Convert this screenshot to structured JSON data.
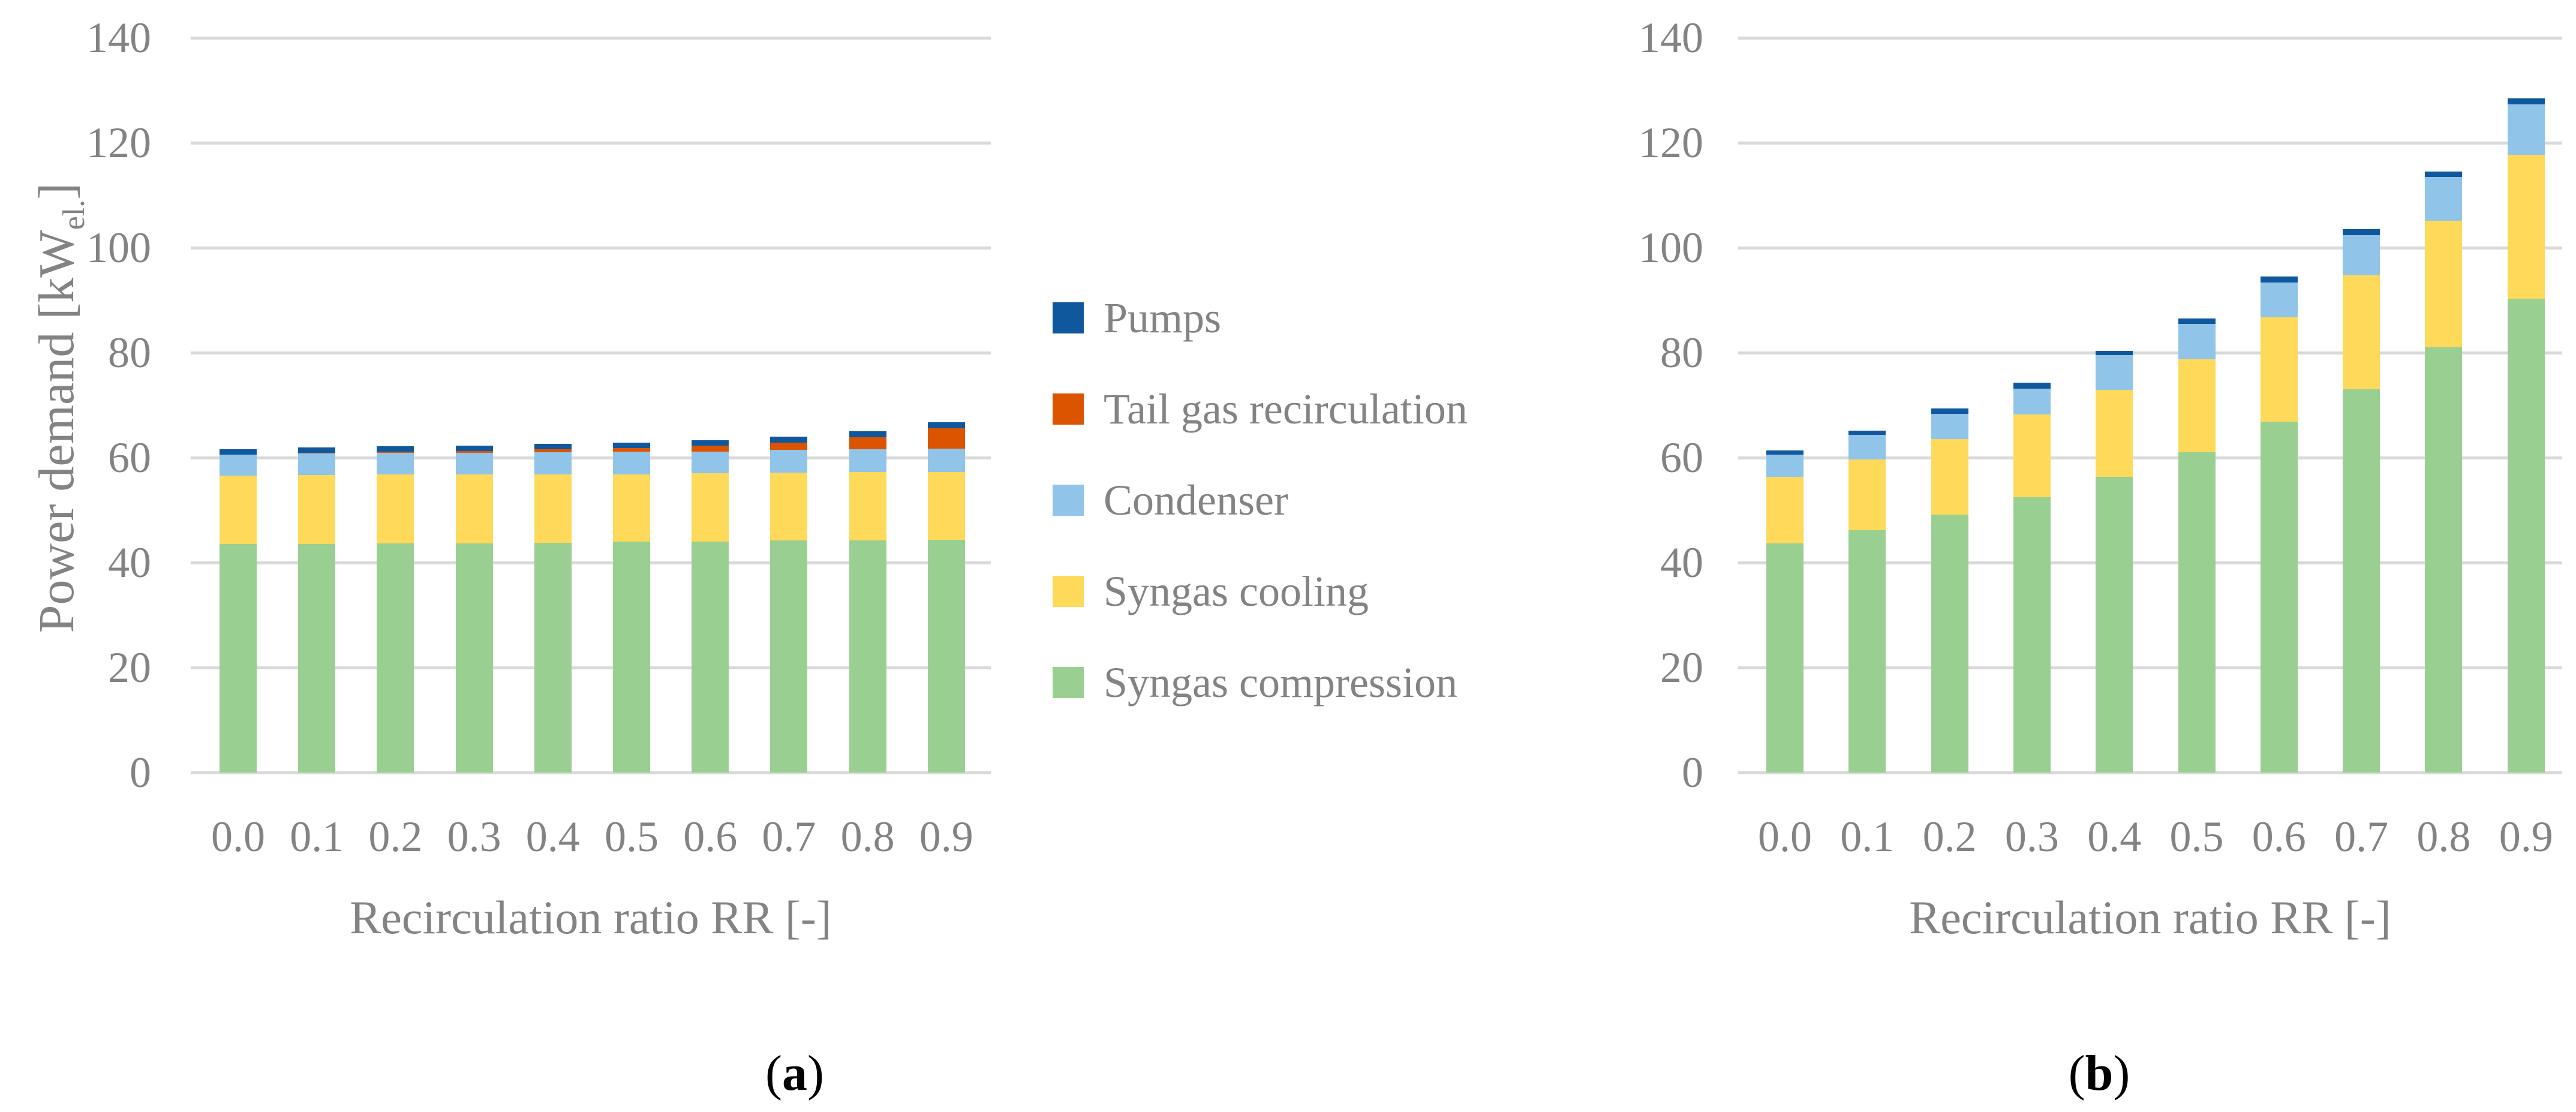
{
  "figure": {
    "caption_open": "(",
    "caption_close": ")",
    "panel_a_caption_letter": "a",
    "panel_b_caption_letter": "b"
  },
  "axes": {
    "ylabel_main": "Power demand [kW",
    "ylabel_sub": "el.",
    "ylabel_close": "]",
    "xlabel": "Recirculation ratio RR [-]",
    "ylim": [
      0,
      140
    ],
    "ytick_step": 20,
    "yticks": [
      "0",
      "20",
      "40",
      "60",
      "80",
      "100",
      "120",
      "140"
    ],
    "categories": [
      "0.0",
      "0.1",
      "0.2",
      "0.3",
      "0.4",
      "0.5",
      "0.6",
      "0.7",
      "0.8",
      "0.9"
    ],
    "grid": true
  },
  "legend": {
    "position": "center-between-panels",
    "items": [
      {
        "label": "Pumps",
        "color": "#10589E"
      },
      {
        "label": "Tail gas recirculation",
        "color": "#DC5400"
      },
      {
        "label": "Condenser",
        "color": "#90C4E9"
      },
      {
        "label": "Syngas cooling",
        "color": "#FFD95A"
      },
      {
        "label": "Syngas compression",
        "color": "#99CF90"
      }
    ]
  },
  "colors": {
    "background": "#FFFFFF",
    "gridline": "#D9D9D9",
    "axis_text": "#838383",
    "caption_text": "#000000"
  },
  "chart_data": [
    {
      "id": "a",
      "type": "bar",
      "stacked": true,
      "title": "",
      "xlabel": "Recirculation ratio RR [-]",
      "ylabel": "Power demand [kW el.]",
      "ylim": [
        0,
        140
      ],
      "grid": true,
      "categories": [
        "0.0",
        "0.1",
        "0.2",
        "0.3",
        "0.4",
        "0.5",
        "0.6",
        "0.7",
        "0.8",
        "0.9"
      ],
      "series": [
        {
          "name": "Syngas compression",
          "color": "#99CF90",
          "values": [
            43.6,
            43.6,
            43.7,
            43.7,
            43.8,
            44.0,
            44.0,
            44.2,
            44.2,
            44.3
          ]
        },
        {
          "name": "Syngas cooling",
          "color": "#FFD95A",
          "values": [
            13.0,
            13.1,
            13.1,
            13.1,
            13.0,
            12.8,
            13.0,
            13.0,
            13.1,
            13.0
          ]
        },
        {
          "name": "Condenser",
          "color": "#90C4E9",
          "values": [
            4.0,
            4.1,
            4.1,
            4.1,
            4.2,
            4.3,
            4.1,
            4.3,
            4.3,
            4.4
          ]
        },
        {
          "name": "Tail gas recirculation",
          "color": "#DC5400",
          "values": [
            0.0,
            0.1,
            0.3,
            0.4,
            0.6,
            0.7,
            1.2,
            1.4,
            2.3,
            3.9
          ]
        },
        {
          "name": "Pumps",
          "color": "#10589E",
          "values": [
            1.0,
            1.0,
            1.0,
            1.0,
            1.0,
            1.1,
            1.0,
            1.1,
            1.1,
            1.1
          ]
        }
      ],
      "totals": [
        61.6,
        61.9,
        62.2,
        62.3,
        62.6,
        62.9,
        63.3,
        64.0,
        65.0,
        66.7
      ]
    },
    {
      "id": "b",
      "type": "bar",
      "stacked": true,
      "title": "",
      "xlabel": "Recirculation ratio RR [-]",
      "ylabel": "Power demand [kW el.]",
      "ylim": [
        0,
        140
      ],
      "grid": true,
      "categories": [
        "0.0",
        "0.1",
        "0.2",
        "0.3",
        "0.4",
        "0.5",
        "0.6",
        "0.7",
        "0.8",
        "0.9"
      ],
      "series": [
        {
          "name": "Syngas compression",
          "color": "#99CF90",
          "values": [
            43.7,
            46.2,
            49.2,
            52.5,
            56.4,
            61.0,
            66.9,
            73.0,
            81.0,
            90.3
          ]
        },
        {
          "name": "Syngas cooling",
          "color": "#FFD95A",
          "values": [
            12.7,
            13.5,
            14.4,
            15.7,
            16.5,
            17.8,
            19.8,
            21.8,
            24.1,
            27.4
          ]
        },
        {
          "name": "Condenser",
          "color": "#90C4E9",
          "values": [
            4.2,
            4.6,
            4.7,
            5.0,
            6.6,
            6.7,
            6.7,
            7.6,
            8.4,
            9.6
          ]
        },
        {
          "name": "Tail gas recirculation",
          "color": "#DC5400",
          "values": [
            0.0,
            0.0,
            0.0,
            0.0,
            0.0,
            0.0,
            0.0,
            0.0,
            0.0,
            0.0
          ]
        },
        {
          "name": "Pumps",
          "color": "#10589E",
          "values": [
            0.8,
            0.9,
            1.1,
            1.1,
            0.9,
            1.0,
            1.1,
            1.1,
            1.0,
            1.2
          ]
        }
      ],
      "totals": [
        61.4,
        65.2,
        69.4,
        74.3,
        80.4,
        86.5,
        94.5,
        103.5,
        114.5,
        128.5
      ]
    }
  ]
}
